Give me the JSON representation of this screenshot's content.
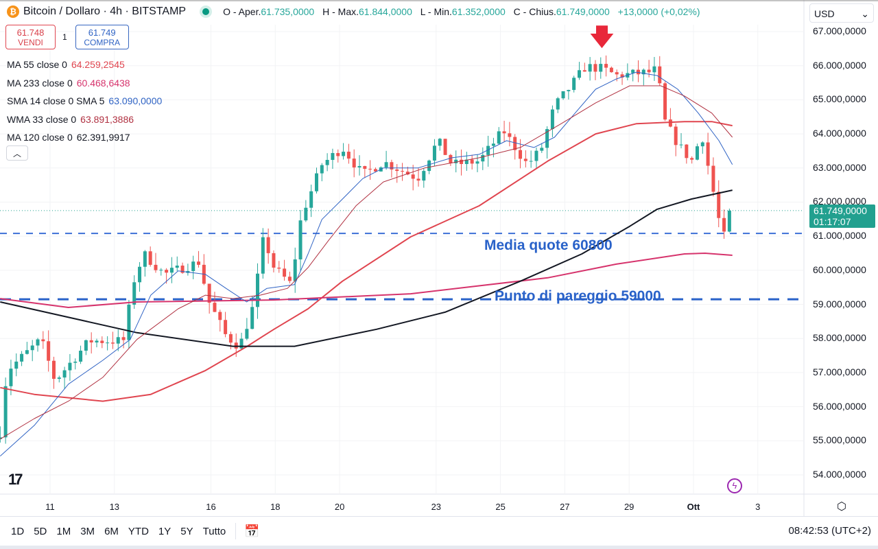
{
  "header": {
    "symbol": "Bitcoin / Dollaro · 4h · BITSTAMP",
    "o_label": "O - Aper.",
    "o": "61.735,0000",
    "h_label": "H - Max.",
    "h": "61.844,0000",
    "l_label": "L - Min.",
    "l": "61.352,0000",
    "c_label": "C - Chius.",
    "c": "61.749,0000",
    "change": "+13,0000 (+0,02%)"
  },
  "trade": {
    "sell_price": "61.748",
    "sell_label": "VENDI",
    "qty": "1",
    "buy_price": "61.749",
    "buy_label": "COMPRA"
  },
  "legend": [
    {
      "name": "MA 55 close 0",
      "value": "64.259,2545",
      "color": "#e0454f"
    },
    {
      "name": "MA 233 close 0",
      "value": "60.468,6438",
      "color": "#d6336c"
    },
    {
      "name": "SMA 14 close 0 SMA 5",
      "value": "63.090,0000",
      "color": "#2f63c4"
    },
    {
      "name": "WMA 33 close 0",
      "value": "63.891,3886",
      "color": "#b03040"
    },
    {
      "name": "MA 120 close 0",
      "value": "62.391,9917",
      "color": "#131722"
    }
  ],
  "currency": "USD",
  "price_labels": [
    "67.000,0000",
    "66.000,0000",
    "65.000,0000",
    "64.000,0000",
    "63.000,0000",
    "62.000,0000",
    "61.000,0000",
    "60.000,0000",
    "59.000,0000",
    "58.000,0000",
    "57.000,0000",
    "56.000,0000",
    "55.000,0000",
    "54.000,0000"
  ],
  "current": {
    "price": "61.749,0000",
    "countdown": "01:17:07",
    "value": 61749
  },
  "time_labels": [
    {
      "t": "11",
      "d": 11
    },
    {
      "t": "13",
      "d": 13
    },
    {
      "t": "16",
      "d": 16
    },
    {
      "t": "18",
      "d": 18
    },
    {
      "t": "20",
      "d": 20
    },
    {
      "t": "23",
      "d": 23
    },
    {
      "t": "25",
      "d": 25
    },
    {
      "t": "27",
      "d": 27
    },
    {
      "t": "29",
      "d": 29
    },
    {
      "t": "Ott",
      "d": 31
    },
    {
      "t": "3",
      "d": 33
    }
  ],
  "ranges": [
    "1D",
    "5D",
    "1M",
    "3M",
    "6M",
    "YTD",
    "1Y",
    "5Y",
    "Tutto"
  ],
  "clock": "08:42:53 (UTC+2)",
  "annotations": {
    "avg": "Media quote 60800",
    "avg_level": 61080,
    "breakeven": "Punto di pareggio 59000",
    "breakeven_level": 59150
  },
  "chart_data": {
    "type": "candlestick",
    "yrange": [
      54000,
      67000
    ],
    "xrange_days": [
      9.45,
      33.6
    ],
    "candles_per_day": 6,
    "up_color": "#26a69a",
    "down_color": "#ef5350",
    "close_keypoints": [
      [
        9.45,
        55250
      ],
      [
        9.66,
        57060
      ],
      [
        10.72,
        57970
      ],
      [
        11.15,
        56760
      ],
      [
        11.79,
        57460
      ],
      [
        12.21,
        57930
      ],
      [
        13.28,
        57930
      ],
      [
        13.6,
        59680
      ],
      [
        13.91,
        60480
      ],
      [
        14.55,
        59880
      ],
      [
        15.62,
        60240
      ],
      [
        15.94,
        59070
      ],
      [
        16.47,
        58070
      ],
      [
        16.89,
        57760
      ],
      [
        17.32,
        58970
      ],
      [
        17.64,
        60980
      ],
      [
        17.96,
        60080
      ],
      [
        18.49,
        59580
      ],
      [
        18.81,
        61590
      ],
      [
        19.02,
        62090
      ],
      [
        19.45,
        63100
      ],
      [
        20.09,
        63600
      ],
      [
        20.72,
        62800
      ],
      [
        21.36,
        63180
      ],
      [
        22.43,
        62700
      ],
      [
        23.06,
        63800
      ],
      [
        23.49,
        63100
      ],
      [
        24.34,
        63200
      ],
      [
        25.09,
        64100
      ],
      [
        25.83,
        63100
      ],
      [
        26.26,
        63540
      ],
      [
        26.68,
        64810
      ],
      [
        27.11,
        65310
      ],
      [
        27.64,
        65970
      ],
      [
        28.17,
        65910
      ],
      [
        28.6,
        65710
      ],
      [
        29.66,
        65810
      ],
      [
        29.87,
        65910
      ],
      [
        30.09,
        64400
      ],
      [
        30.51,
        63700
      ],
      [
        30.94,
        63200
      ],
      [
        31.26,
        64000
      ],
      [
        31.57,
        62490
      ],
      [
        31.74,
        61790
      ],
      [
        31.89,
        60780
      ],
      [
        32.06,
        61390
      ],
      [
        32.17,
        61749
      ]
    ],
    "series": [
      {
        "name": "MA 55",
        "color": "#e0454f",
        "width": 2,
        "points": [
          [
            9.45,
            56560
          ],
          [
            10.51,
            56360
          ],
          [
            12.64,
            56160
          ],
          [
            14.13,
            56360
          ],
          [
            15.83,
            57060
          ],
          [
            17.11,
            57760
          ],
          [
            17.96,
            58270
          ],
          [
            19.02,
            58870
          ],
          [
            20.09,
            59680
          ],
          [
            22.21,
            60980
          ],
          [
            24.34,
            61890
          ],
          [
            26.47,
            63200
          ],
          [
            27.96,
            64000
          ],
          [
            29.23,
            64300
          ],
          [
            30.72,
            64360
          ],
          [
            31.57,
            64360
          ],
          [
            32.21,
            64240
          ]
        ]
      },
      {
        "name": "MA 233",
        "color": "#d6336c",
        "width": 2,
        "points": [
          [
            9.45,
            59170
          ],
          [
            11.57,
            58910
          ],
          [
            13.7,
            59070
          ],
          [
            17.96,
            59130
          ],
          [
            22.21,
            59310
          ],
          [
            26.47,
            59780
          ],
          [
            28.6,
            60180
          ],
          [
            30.72,
            60480
          ],
          [
            31.36,
            60500
          ],
          [
            32.21,
            60440
          ]
        ]
      },
      {
        "name": "MA 120",
        "color": "#131722",
        "width": 2,
        "points": [
          [
            9.45,
            59070
          ],
          [
            13.7,
            58170
          ],
          [
            16.68,
            57770
          ],
          [
            18.6,
            57770
          ],
          [
            21.15,
            58270
          ],
          [
            23.28,
            58770
          ],
          [
            25.62,
            59680
          ],
          [
            27.53,
            60480
          ],
          [
            29.02,
            61290
          ],
          [
            29.87,
            61790
          ],
          [
            30.94,
            62090
          ],
          [
            32.21,
            62350
          ]
        ]
      },
      {
        "name": "SMA 14",
        "color": "#2f63c4",
        "width": 1,
        "points": [
          [
            9.45,
            54550
          ],
          [
            10.51,
            55450
          ],
          [
            11.57,
            56660
          ],
          [
            12.64,
            57360
          ],
          [
            13.49,
            57970
          ],
          [
            14.13,
            59270
          ],
          [
            14.98,
            59980
          ],
          [
            15.83,
            59880
          ],
          [
            16.47,
            59470
          ],
          [
            17.11,
            59070
          ],
          [
            17.74,
            59470
          ],
          [
            18.6,
            59580
          ],
          [
            19.02,
            60480
          ],
          [
            19.45,
            61490
          ],
          [
            20.09,
            62090
          ],
          [
            20.72,
            62690
          ],
          [
            21.36,
            63000
          ],
          [
            22.43,
            63000
          ],
          [
            23.49,
            63300
          ],
          [
            24.34,
            63400
          ],
          [
            25.19,
            63800
          ],
          [
            26.04,
            63600
          ],
          [
            26.68,
            63900
          ],
          [
            27.32,
            64610
          ],
          [
            27.96,
            65310
          ],
          [
            28.6,
            65610
          ],
          [
            29.23,
            65810
          ],
          [
            29.87,
            65710
          ],
          [
            30.51,
            65310
          ],
          [
            31.15,
            64610
          ],
          [
            31.79,
            63800
          ],
          [
            32.21,
            63100
          ]
        ]
      },
      {
        "name": "WMA 33",
        "color": "#b03040",
        "width": 1,
        "points": [
          [
            9.45,
            55050
          ],
          [
            10.51,
            55650
          ],
          [
            11.57,
            56160
          ],
          [
            12.64,
            56860
          ],
          [
            13.7,
            57970
          ],
          [
            14.98,
            58870
          ],
          [
            15.83,
            59270
          ],
          [
            16.68,
            59170
          ],
          [
            17.53,
            59270
          ],
          [
            18.38,
            59470
          ],
          [
            19.02,
            60080
          ],
          [
            19.66,
            60880
          ],
          [
            20.51,
            61890
          ],
          [
            21.36,
            62590
          ],
          [
            22.64,
            63000
          ],
          [
            24.34,
            63300
          ],
          [
            25.62,
            63600
          ],
          [
            26.89,
            64300
          ],
          [
            27.96,
            64910
          ],
          [
            29.02,
            65410
          ],
          [
            29.98,
            65410
          ],
          [
            30.72,
            65110
          ],
          [
            31.57,
            64610
          ],
          [
            32.21,
            63900
          ]
        ]
      }
    ]
  }
}
